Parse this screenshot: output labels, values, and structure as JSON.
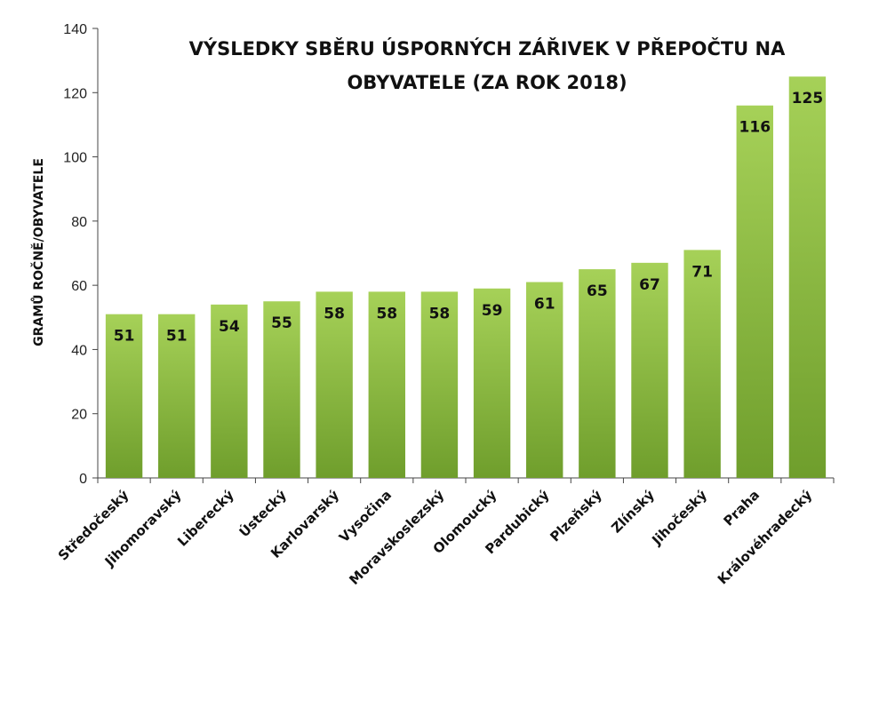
{
  "chart_data": {
    "type": "bar",
    "title_lines": [
      "VÝSLEDKY SBĚRU ÚSPORNÝCH ZÁŘIVEK V PŘEPOČTU NA",
      "OBYVATELE (ZA ROK 2018)"
    ],
    "ylabel": "GRAMŮ ROČNĚ/OBYVATELE",
    "xlabel": "",
    "ylim": [
      0,
      140
    ],
    "yticks": [
      0,
      20,
      40,
      60,
      80,
      100,
      120,
      140
    ],
    "categories": [
      "Středočeský",
      "Jihomoravský",
      "Liberecký",
      "Ústecký",
      "Karlovarský",
      "Vysočina",
      "Moravskoslezský",
      "Olomoucký",
      "Pardubický",
      "Plzeňský",
      "Zlínský",
      "Jihočeský",
      "Praha",
      "Královéhradecký"
    ],
    "values": [
      51,
      51,
      54,
      55,
      58,
      58,
      58,
      59,
      61,
      65,
      67,
      71,
      116,
      125
    ],
    "data_labels": [
      "51",
      "51",
      "54",
      "55",
      "58",
      "58",
      "58",
      "59",
      "61",
      "65",
      "67",
      "71",
      "116",
      "125"
    ],
    "bar_color": "#8cbf3f",
    "bar_color_light": "#a6d158",
    "bar_color_dark": "#6f9e2c",
    "grid": false,
    "legend": "none"
  }
}
